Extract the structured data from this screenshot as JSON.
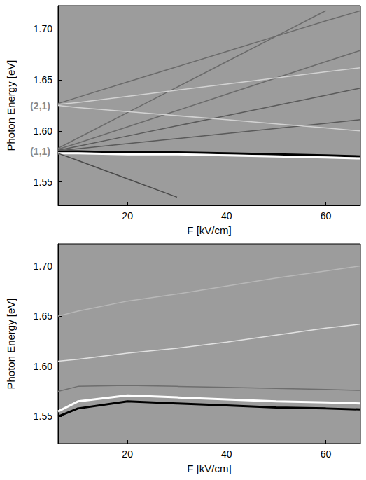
{
  "chart_data": [
    {
      "type": "line",
      "xlabel": "F [kV/cm]",
      "ylabel": "Photon Energy [eV]",
      "x": [
        6,
        10,
        20,
        30,
        40,
        50,
        60,
        67
      ],
      "xlim": [
        6,
        67
      ],
      "ylim": [
        1.527,
        1.723
      ],
      "xticks": [
        20,
        40,
        60
      ],
      "yticks": [
        1.55,
        {
          "value": 1.6,
          "label": "1.60"
        },
        1.65,
        {
          "value": 1.7,
          "label": "1.70"
        }
      ],
      "grid": false,
      "annotations": [
        {
          "text": "(1,1)",
          "y": 1.58
        },
        {
          "text": "(2,1)",
          "y": 1.625
        }
      ],
      "series": [
        {
          "color": "#000000",
          "values": [
            1.58,
            1.58,
            1.579,
            1.579,
            1.578,
            1.577,
            1.576,
            1.575
          ]
        },
        {
          "color": "#ffffff",
          "values": [
            1.578,
            1.578,
            1.577,
            1.577,
            1.576,
            1.575,
            1.574,
            1.573
          ]
        },
        {
          "color": "#5a5a5a",
          "values": [
            1.5805,
            1.5825,
            1.5875,
            1.5925,
            1.5975,
            1.6025,
            1.6075,
            1.611
          ]
        },
        {
          "color": "#5a5a5a",
          "values": [
            1.581,
            1.585,
            1.595,
            1.605,
            1.615,
            1.625,
            1.635,
            1.642
          ]
        },
        {
          "color": "#6a6a6a",
          "values": [
            1.582,
            1.588,
            1.604,
            1.62,
            1.636,
            1.652,
            1.668,
            1.679
          ]
        },
        {
          "color": "#6a6a6a",
          "values": [
            1.583,
            1.593,
            1.618,
            1.643,
            1.668,
            1.693,
            1.718,
            null
          ]
        },
        {
          "color": "#4a4a4a",
          "values": [
            1.578,
            1.571,
            1.553,
            1.535,
            null,
            null,
            null,
            null
          ]
        },
        {
          "color": "#d2d2d2",
          "values": [
            1.626,
            1.628,
            1.634,
            1.64,
            1.646,
            1.652,
            1.658,
            1.662
          ]
        },
        {
          "color": "#6a6a6a",
          "values": [
            1.627,
            1.633,
            1.648,
            1.663,
            1.678,
            1.693,
            1.708,
            1.718
          ]
        },
        {
          "color": "#d2d2d2",
          "values": [
            1.625,
            1.623,
            1.619,
            1.615,
            1.611,
            1.607,
            1.603,
            1.6
          ]
        }
      ]
    },
    {
      "type": "line",
      "xlabel": "F [kV/cm]",
      "ylabel": "Photon Energy [eV]",
      "x": [
        6,
        10,
        20,
        30,
        40,
        50,
        60,
        67
      ],
      "xlim": [
        6,
        67
      ],
      "ylim": [
        1.523,
        1.722
      ],
      "xticks": [
        20,
        40,
        60
      ],
      "yticks": [
        1.55,
        {
          "value": 1.6,
          "label": "1.60"
        },
        1.65,
        {
          "value": 1.7,
          "label": "1.70"
        }
      ],
      "grid": false,
      "series": [
        {
          "color": "#ffffff",
          "values": [
            1.555,
            1.565,
            1.571,
            1.569,
            1.567,
            1.565,
            1.564,
            1.563
          ]
        },
        {
          "color": "#000000",
          "values": [
            1.55,
            1.558,
            1.565,
            1.563,
            1.561,
            1.559,
            1.558,
            1.557
          ]
        },
        {
          "color": "#6e6e6e",
          "values": [
            1.575,
            1.58,
            1.581,
            1.58,
            1.579,
            1.578,
            1.577,
            1.576
          ]
        },
        {
          "color": "#e2e2e2",
          "values": [
            1.605,
            1.607,
            1.613,
            1.618,
            1.624,
            1.631,
            1.638,
            1.642
          ]
        },
        {
          "color": "#b8b8b8",
          "values": [
            1.65,
            1.655,
            1.665,
            1.672,
            1.68,
            1.688,
            1.695,
            1.7
          ]
        }
      ]
    }
  ]
}
